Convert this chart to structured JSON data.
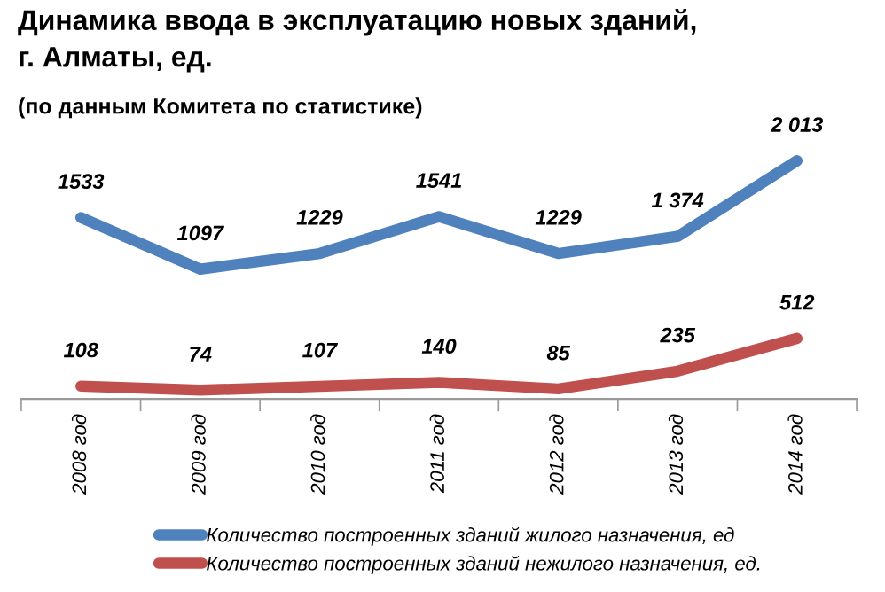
{
  "chart_data": {
    "type": "line",
    "title": "Динамика ввода в эксплуатацию новых зданий,\nг. Алматы, ед.",
    "subtitle": "(по данным Комитета по статистике)",
    "categories": [
      "2008 год",
      "2009 год",
      "2010 год",
      "2011 год",
      "2012 год",
      "2013 год",
      "2014 год"
    ],
    "series": [
      {
        "name": "Количество построенных зданий жилого назначения, ед",
        "color": "#4f81bd",
        "values": [
          1533,
          1097,
          1229,
          1541,
          1229,
          1374,
          2013
        ],
        "value_labels": [
          "1533",
          "1097",
          "1229",
          "1541",
          "1229",
          "1 374",
          "2 013"
        ]
      },
      {
        "name": "Количество построенных зданий нежилого назначения, ед.",
        "color": "#c0504d",
        "values": [
          108,
          74,
          107,
          140,
          85,
          235,
          512
        ],
        "value_labels": [
          "108",
          "74",
          "107",
          "140",
          "85",
          "235",
          "512"
        ]
      }
    ],
    "grid": false,
    "legend": "bottom",
    "marker": "none",
    "line_style": "solid"
  }
}
